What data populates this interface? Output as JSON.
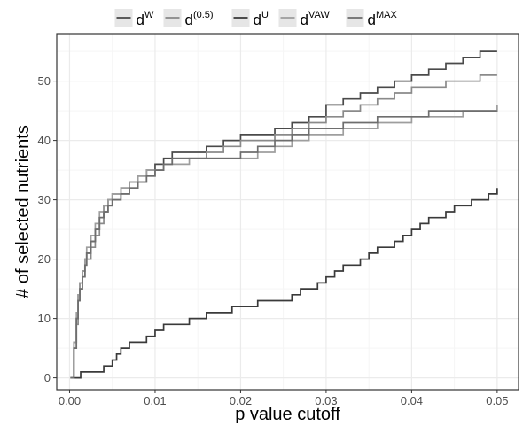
{
  "chart_data": {
    "type": "line",
    "title": "",
    "xlabel": "p value cutoff",
    "ylabel": "# of selected nutrients",
    "xlim": [
      -0.0015,
      0.0525
    ],
    "ylim": [
      -2,
      58
    ],
    "x_ticks": [
      0.0,
      0.01,
      0.02,
      0.03,
      0.04,
      0.05
    ],
    "x_tick_labels": [
      "0.00",
      "0.01",
      "0.02",
      "0.03",
      "0.04",
      "0.05"
    ],
    "y_ticks": [
      0,
      10,
      20,
      30,
      40,
      50
    ],
    "y_tick_labels": [
      "0",
      "10",
      "20",
      "30",
      "40",
      "50"
    ],
    "grid": true,
    "legend_position": "top",
    "series": [
      {
        "name": "d^W",
        "label_base": "d",
        "label_sup": "W",
        "color": "#4a4a4a",
        "step": true,
        "x": [
          0.0001,
          0.0005,
          0.0008,
          0.001,
          0.0012,
          0.0015,
          0.0018,
          0.002,
          0.0025,
          0.003,
          0.0035,
          0.004,
          0.0045,
          0.005,
          0.006,
          0.007,
          0.008,
          0.009,
          0.01,
          0.011,
          0.012,
          0.014,
          0.016,
          0.018,
          0.02,
          0.022,
          0.024,
          0.026,
          0.028,
          0.03,
          0.032,
          0.034,
          0.036,
          0.038,
          0.04,
          0.042,
          0.044,
          0.046,
          0.048,
          0.05
        ],
        "y": [
          0,
          6,
          10,
          14,
          16,
          18,
          20,
          21,
          23,
          25,
          27,
          29,
          30,
          31,
          32,
          33,
          34,
          35,
          36,
          37,
          38,
          38,
          39,
          40,
          41,
          41,
          42,
          43,
          44,
          46,
          47,
          48,
          49,
          50,
          51,
          52,
          53,
          54,
          55,
          55
        ]
      },
      {
        "name": "d^(0.5)",
        "label_base": "d",
        "label_sup": "(0.5)",
        "color": "#8a8a8a",
        "step": true,
        "x": [
          0.0001,
          0.0005,
          0.0008,
          0.001,
          0.0012,
          0.0015,
          0.0018,
          0.002,
          0.0025,
          0.003,
          0.0035,
          0.004,
          0.0045,
          0.005,
          0.006,
          0.007,
          0.008,
          0.009,
          0.01,
          0.011,
          0.012,
          0.014,
          0.016,
          0.018,
          0.02,
          0.022,
          0.024,
          0.026,
          0.028,
          0.03,
          0.032,
          0.034,
          0.036,
          0.038,
          0.04,
          0.042,
          0.044,
          0.046,
          0.048,
          0.05
        ],
        "y": [
          0,
          5,
          9,
          13,
          15,
          17,
          19,
          20,
          22,
          24,
          26,
          28,
          29,
          30,
          31,
          32,
          33,
          34,
          35,
          36,
          37,
          37,
          38,
          39,
          40,
          40,
          41,
          42,
          43,
          44,
          45,
          46,
          47,
          48,
          49,
          49,
          50,
          50,
          51,
          51
        ]
      },
      {
        "name": "d^U",
        "label_base": "d",
        "label_sup": "U",
        "color": "#3a3a3a",
        "step": true,
        "x": [
          0.0001,
          0.0013,
          0.0018,
          0.0025,
          0.003,
          0.004,
          0.005,
          0.0055,
          0.006,
          0.007,
          0.008,
          0.009,
          0.01,
          0.011,
          0.012,
          0.014,
          0.015,
          0.016,
          0.018,
          0.019,
          0.02,
          0.022,
          0.024,
          0.026,
          0.027,
          0.028,
          0.029,
          0.03,
          0.031,
          0.032,
          0.033,
          0.034,
          0.035,
          0.036,
          0.037,
          0.038,
          0.039,
          0.04,
          0.041,
          0.042,
          0.043,
          0.044,
          0.045,
          0.046,
          0.047,
          0.048,
          0.049,
          0.05
        ],
        "y": [
          0,
          1,
          1,
          1,
          1,
          2,
          3,
          4,
          5,
          6,
          6,
          7,
          8,
          9,
          9,
          10,
          10,
          11,
          11,
          12,
          12,
          13,
          13,
          14,
          15,
          15,
          16,
          17,
          18,
          19,
          19,
          20,
          21,
          22,
          22,
          23,
          24,
          25,
          26,
          27,
          27,
          28,
          29,
          29,
          30,
          30,
          31,
          32
        ]
      },
      {
        "name": "d^VAW",
        "label_base": "d",
        "label_sup": "VAW",
        "color": "#9e9e9e",
        "step": true,
        "x": [
          0.0001,
          0.0005,
          0.0008,
          0.001,
          0.0012,
          0.0015,
          0.0018,
          0.002,
          0.0025,
          0.003,
          0.0035,
          0.004,
          0.0045,
          0.005,
          0.006,
          0.007,
          0.008,
          0.009,
          0.01,
          0.011,
          0.012,
          0.014,
          0.016,
          0.018,
          0.02,
          0.022,
          0.024,
          0.026,
          0.028,
          0.03,
          0.032,
          0.034,
          0.036,
          0.038,
          0.04,
          0.042,
          0.044,
          0.046,
          0.048,
          0.05
        ],
        "y": [
          0,
          6,
          11,
          14,
          16,
          18,
          20,
          22,
          24,
          26,
          28,
          29,
          30,
          31,
          32,
          33,
          34,
          35,
          35,
          36,
          36,
          37,
          37,
          37,
          37,
          38,
          39,
          40,
          41,
          41,
          42,
          42,
          43,
          43,
          44,
          44,
          44,
          45,
          45,
          46
        ]
      },
      {
        "name": "d^MAX",
        "label_base": "d",
        "label_sup": "MAX",
        "color": "#6e6e6e",
        "step": true,
        "x": [
          0.0001,
          0.0005,
          0.0008,
          0.001,
          0.0012,
          0.0015,
          0.0018,
          0.002,
          0.0025,
          0.003,
          0.0035,
          0.004,
          0.0045,
          0.005,
          0.006,
          0.007,
          0.008,
          0.009,
          0.01,
          0.011,
          0.012,
          0.014,
          0.016,
          0.018,
          0.02,
          0.022,
          0.024,
          0.026,
          0.028,
          0.03,
          0.032,
          0.034,
          0.036,
          0.038,
          0.04,
          0.042,
          0.044,
          0.046,
          0.048,
          0.05
        ],
        "y": [
          0,
          5,
          10,
          13,
          15,
          17,
          19,
          21,
          23,
          25,
          27,
          28,
          29,
          30,
          31,
          32,
          33,
          34,
          35,
          36,
          37,
          37,
          37,
          37,
          38,
          39,
          40,
          41,
          42,
          42,
          43,
          43,
          44,
          44,
          44,
          45,
          45,
          45,
          45,
          45
        ]
      }
    ]
  },
  "colors": {
    "panel_border": "#333333",
    "grid_major": "#ebebeb",
    "grid_minor": "#f5f5f5",
    "legend_key_bg": "#e6e6e6"
  }
}
